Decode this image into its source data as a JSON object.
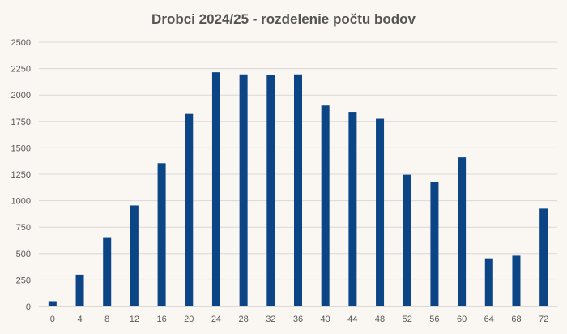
{
  "chart_data": {
    "type": "bar",
    "title": "Drobci 2024/25 - rozdelenie počtu bodov",
    "xlabel": "",
    "ylabel": "",
    "categories": [
      "0",
      "4",
      "8",
      "12",
      "16",
      "20",
      "24",
      "28",
      "32",
      "36",
      "40",
      "44",
      "48",
      "52",
      "56",
      "60",
      "64",
      "68",
      "72"
    ],
    "values": [
      50,
      300,
      655,
      955,
      1355,
      1820,
      2215,
      2195,
      2190,
      2195,
      1900,
      1840,
      1775,
      1245,
      1180,
      1410,
      455,
      480,
      925
    ],
    "ylim": [
      0,
      2500
    ],
    "yticks": [
      "0",
      "250",
      "500",
      "750",
      "1000",
      "1250",
      "1500",
      "1750",
      "2000",
      "2250",
      "2500"
    ],
    "grid": true,
    "legend": "none",
    "colors": {
      "bar": "#0b4586",
      "background": "#faf6f1",
      "grid": "#d9d9d9"
    }
  }
}
